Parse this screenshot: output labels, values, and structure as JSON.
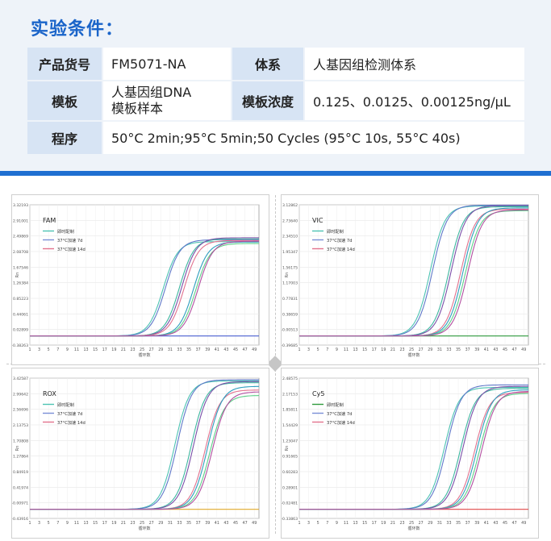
{
  "section_title": "实验条件：",
  "conditions": [
    {
      "label1": "产品货号",
      "value1": "FM5071-NA",
      "label2": "体系",
      "value2": "人基因组检测体系"
    },
    {
      "label1": "模板",
      "value1_line1": "人基因组DNA",
      "value1_line2": "模板样本",
      "label2": "模板浓度",
      "value2": "0.125、0.0125、0.00125ng/μL"
    },
    {
      "label1": "程序",
      "value_full": "50°C 2min;95°C 5min;50 Cycles (95°C 10s, 55°C 40s)"
    }
  ],
  "charts": [
    {
      "id": "fam",
      "title": "FAM",
      "legend": [
        "即时配制",
        "37°C加速 7d",
        "37°C加速 14d"
      ],
      "legend_colors": [
        "#4dc3b3",
        "#7a8fd6",
        "#e2728e"
      ],
      "ylabel": "Rn",
      "xlabel": "循环数",
      "y_ticks": [
        "3.32193",
        "2.91001",
        "2.49869",
        "2.08708",
        "1.67546",
        "1.26384",
        "0.85223",
        "0.44061",
        "0.02899",
        "-0.38263"
      ],
      "x_ticks": [
        "1",
        "3",
        "5",
        "7",
        "9",
        "11",
        "13",
        "15",
        "17",
        "19",
        "21",
        "23",
        "25",
        "27",
        "29",
        "31",
        "33",
        "35",
        "37",
        "39",
        "41",
        "43",
        "45",
        "47",
        "49"
      ],
      "threshold_color": "#4a5fd0",
      "curves": [
        {
          "color": "#4dc3b3",
          "mid": 29.5,
          "top": 2.35
        },
        {
          "color": "#5f78c9",
          "mid": 30.0,
          "top": 2.4
        },
        {
          "color": "#3eb7a0",
          "mid": 33.0,
          "top": 2.42
        },
        {
          "color": "#7a4fa8",
          "mid": 33.5,
          "top": 2.45
        },
        {
          "color": "#e2728e",
          "mid": 34.0,
          "top": 2.38
        },
        {
          "color": "#2d9fbf",
          "mid": 36.0,
          "top": 2.34
        },
        {
          "color": "#5ed089",
          "mid": 36.5,
          "top": 2.3
        },
        {
          "color": "#b24fa0",
          "mid": 37.0,
          "top": 2.36
        }
      ]
    },
    {
      "id": "vic",
      "title": "VIC",
      "legend": [
        "即时配制",
        "37°C加速 7d",
        "37°C加速 14d"
      ],
      "legend_colors": [
        "#4dc3b3",
        "#7a8fd6",
        "#e2728e"
      ],
      "ylabel": "Rn",
      "xlabel": "循环数",
      "y_ticks": [
        "3.12862",
        "2.73640",
        "2.34510",
        "1.95347",
        "1.56175",
        "1.17003",
        "0.77831",
        "0.38659",
        "-0.00513",
        "-0.39685"
      ],
      "x_ticks": [
        "1",
        "3",
        "5",
        "7",
        "9",
        "11",
        "13",
        "15",
        "17",
        "19",
        "21",
        "23",
        "25",
        "27",
        "29",
        "31",
        "33",
        "35",
        "37",
        "39",
        "41",
        "43",
        "45",
        "47",
        "49"
      ],
      "threshold_color": "#2e9a3d",
      "curves": [
        {
          "color": "#4dc3b3",
          "mid": 29.0,
          "top": 3.1
        },
        {
          "color": "#5f78c9",
          "mid": 29.5,
          "top": 3.12
        },
        {
          "color": "#3eb7a0",
          "mid": 33.0,
          "top": 3.08
        },
        {
          "color": "#7a4fa8",
          "mid": 33.5,
          "top": 3.11
        },
        {
          "color": "#e2728e",
          "mid": 35.5,
          "top": 3.02
        },
        {
          "color": "#2d9fbf",
          "mid": 36.0,
          "top": 3.05
        },
        {
          "color": "#5ed089",
          "mid": 36.5,
          "top": 2.98
        },
        {
          "color": "#b24fa0",
          "mid": 37.0,
          "top": 3.0
        }
      ]
    },
    {
      "id": "rox",
      "title": "ROX",
      "legend": [
        "即时配制",
        "37°C加速 7d",
        "37°C加速 14d"
      ],
      "legend_colors": [
        "#4dc3b3",
        "#7a8fd6",
        "#e2728e"
      ],
      "ylabel": "Rn",
      "xlabel": "循环数",
      "y_ticks": [
        "3.42587",
        "2.99642",
        "2.56696",
        "2.13753",
        "1.70808",
        "1.27864",
        "0.84919",
        "0.41974",
        "-0.00971",
        "-0.43916"
      ],
      "x_ticks": [
        "1",
        "3",
        "5",
        "7",
        "9",
        "11",
        "13",
        "15",
        "17",
        "19",
        "21",
        "23",
        "25",
        "27",
        "29",
        "31",
        "33",
        "35",
        "37",
        "39",
        "41",
        "43",
        "45",
        "47",
        "49"
      ],
      "threshold_color": "#e0a92b",
      "curves": [
        {
          "color": "#4dc3b3",
          "mid": 32.0,
          "top": 3.35
        },
        {
          "color": "#5f78c9",
          "mid": 32.5,
          "top": 3.38
        },
        {
          "color": "#3eb7a0",
          "mid": 35.5,
          "top": 3.3
        },
        {
          "color": "#7a4fa8",
          "mid": 36.0,
          "top": 3.33
        },
        {
          "color": "#e2728e",
          "mid": 38.5,
          "top": 3.1
        },
        {
          "color": "#2d9fbf",
          "mid": 39.0,
          "top": 3.2
        },
        {
          "color": "#5ed089",
          "mid": 39.5,
          "top": 2.95
        },
        {
          "color": "#b24fa0",
          "mid": 40.0,
          "top": 3.05
        }
      ]
    },
    {
      "id": "cy5",
      "title": "Cy5",
      "legend": [
        "即时配制",
        "37°C加速 7d",
        "37°C加速 14d"
      ],
      "legend_colors": [
        "#2e9a3d",
        "#7a8fd6",
        "#e2728e"
      ],
      "ylabel": "Rn",
      "xlabel": "循环数",
      "y_ticks": [
        "2.48575",
        "2.17153",
        "1.85811",
        "1.54429",
        "1.23047",
        "0.91665",
        "0.60283",
        "0.28901",
        "-0.02481",
        "-0.33863"
      ],
      "x_ticks": [
        "1",
        "3",
        "5",
        "7",
        "9",
        "11",
        "13",
        "15",
        "17",
        "19",
        "21",
        "23",
        "25",
        "27",
        "29",
        "31",
        "33",
        "35",
        "37",
        "39",
        "41",
        "43",
        "45",
        "47",
        "49"
      ],
      "threshold_color": "#e04848",
      "curves": [
        {
          "color": "#4dc3b3",
          "mid": 32.0,
          "top": 2.3
        },
        {
          "color": "#5f78c9",
          "mid": 32.5,
          "top": 2.35
        },
        {
          "color": "#3eb7a0",
          "mid": 35.5,
          "top": 2.28
        },
        {
          "color": "#7a4fa8",
          "mid": 36.0,
          "top": 2.32
        },
        {
          "color": "#e2728e",
          "mid": 38.5,
          "top": 2.2
        },
        {
          "color": "#2d9fbf",
          "mid": 39.0,
          "top": 2.25
        },
        {
          "color": "#5ed089",
          "mid": 39.5,
          "top": 2.18
        },
        {
          "color": "#b24fa0",
          "mid": 40.0,
          "top": 2.22
        }
      ]
    }
  ]
}
